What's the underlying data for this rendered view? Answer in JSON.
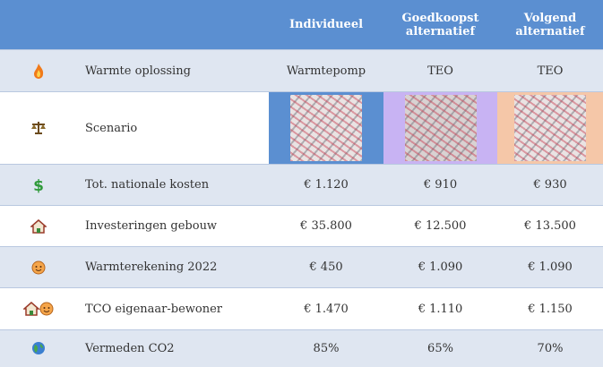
{
  "table": {
    "header": [
      "Individueel",
      "Goedkoopst alternatief",
      "Volgend alternatief"
    ],
    "rows": [
      {
        "label": "Warmte oplossing",
        "cells": [
          "Warmtepomp",
          "TEO",
          "TEO"
        ]
      },
      {
        "label": "Scenario"
      },
      {
        "label": "Tot. nationale kosten",
        "cells": [
          "€ 1.120",
          "€ 910",
          "€ 930"
        ]
      },
      {
        "label": "Investeringen gebouw",
        "cells": [
          "€ 35.800",
          "€ 12.500",
          "€ 13.500"
        ]
      },
      {
        "label": "Warmterekening 2022",
        "cells": [
          "€ 450",
          "€ 1.090",
          "€ 1.090"
        ]
      },
      {
        "label": "TCO eigenaar-bewoner",
        "cells": [
          "€ 1.470",
          "€ 1.110",
          "€ 1.150"
        ]
      },
      {
        "label": "Vermeden CO2",
        "cells": [
          "85%",
          "65%",
          "70%"
        ]
      }
    ]
  }
}
